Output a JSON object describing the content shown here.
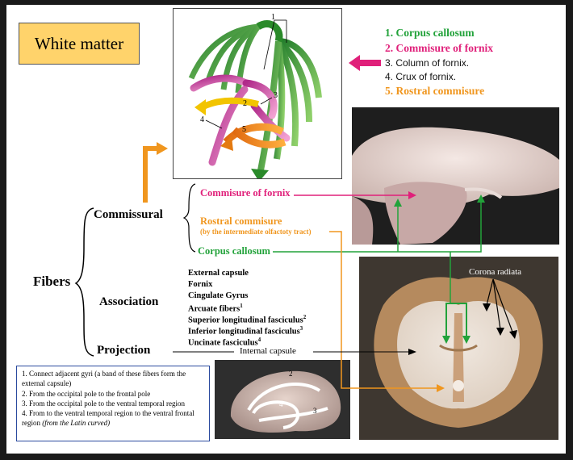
{
  "title": "White matter",
  "legend": [
    {
      "num": "1.",
      "text": "Corpus callosum",
      "color": "#22a23a",
      "bold": true
    },
    {
      "num": "2.",
      "text": "Commisure of fornix",
      "color": "#e0207a",
      "bold": true
    },
    {
      "num": "3.",
      "text": "Column of  fornix.",
      "color": "#111111",
      "bold": false
    },
    {
      "num": "4.",
      "text": "Crux of fornix.",
      "color": "#111111",
      "bold": false
    },
    {
      "num": "5.",
      "text": "Rostral commisure",
      "color": "#f0961e",
      "bold": true
    }
  ],
  "diagram_labels": {
    "n1": "1",
    "n2": "2",
    "n3": "3",
    "n4": "4",
    "n5": "5"
  },
  "fibers_label": "Fibers",
  "categories": {
    "commissural": "Commissural",
    "association": "Association",
    "projection": "Projection"
  },
  "commissural_items": {
    "fornix": "Commisure of fornix",
    "rostral": "Rostral commisure",
    "rostral_note": "(by the intermediate olfactoty tract)",
    "corpus": "Corpus callosum"
  },
  "association_items": [
    {
      "text": "External capsule",
      "sup": ""
    },
    {
      "text": "Fornix",
      "sup": ""
    },
    {
      "text": "Cingulate Gyrus",
      "sup": ""
    },
    {
      "text": "Arcuate fibers",
      "sup": "1"
    },
    {
      "text": "Superior longitudinal fasciculus",
      "sup": "2"
    },
    {
      "text": "Inferior longitudinal fasciculus",
      "sup": "3"
    },
    {
      "text": "Uncinate fasciculus",
      "sup": "4"
    }
  ],
  "projection_item": "Internal capsule",
  "corona_label": "Corona radiata",
  "brain_arc_labels": {
    "a2": "2",
    "a3": "3",
    "a4": "4"
  },
  "notes": {
    "n1": "1. Connect adjacent gyri (a band of these fibers form the external capsule)",
    "n2": "2. From the occipital pole to the frontal pole",
    "n3": "3. From the occipital pole  to the ventral temporal region",
    "n4_main": "4. From to the ventral temporal region to the ventral frontal region ",
    "n4_italic": "(from the Latin curved)"
  },
  "colors": {
    "green": "#22a23a",
    "magenta": "#e0207a",
    "orange": "#f0961e",
    "title_bg": "#ffd36b",
    "notes_border": "#2a4a9e"
  }
}
